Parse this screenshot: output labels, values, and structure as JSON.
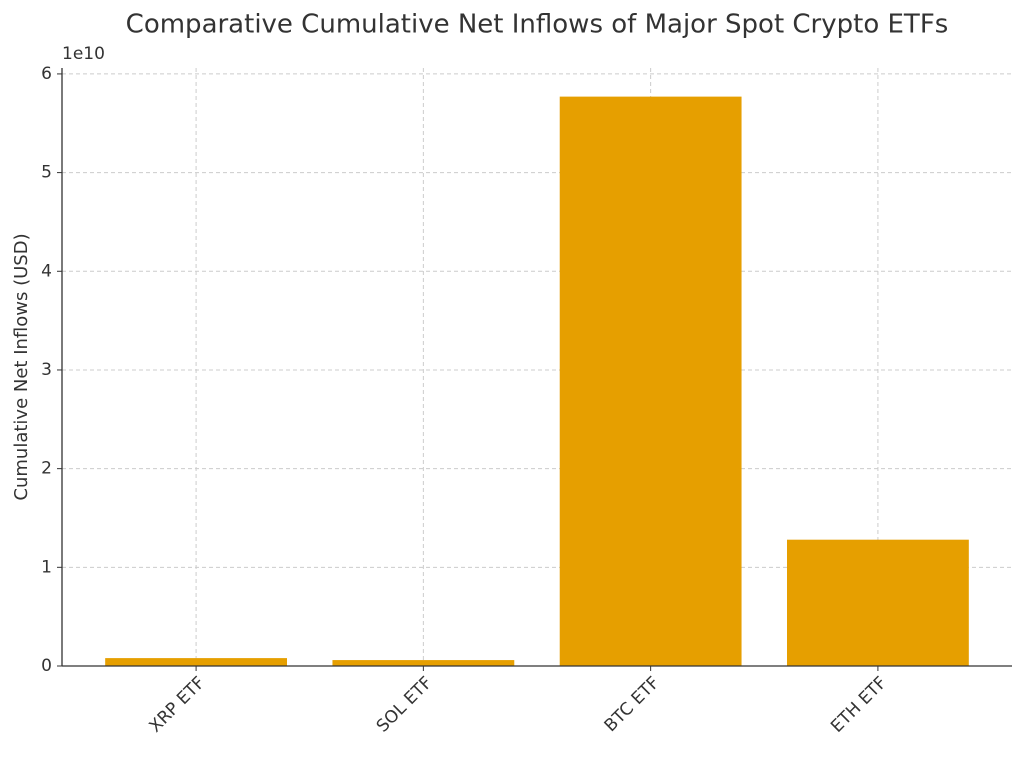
{
  "chart_data": {
    "type": "bar",
    "title": "Comparative Cumulative Net Inflows of Major Spot Crypto ETFs",
    "ylabel": "Cumulative Net Inflows (USD)",
    "y_offset_label": "1e10",
    "categories": [
      "XRP ETF",
      "SOL ETF",
      "BTC ETF",
      "ETH ETF"
    ],
    "values": [
      0.08,
      0.06,
      5.77,
      1.28
    ],
    "color": "#e69f00",
    "ylim": [
      0,
      6.06
    ],
    "yticks": [
      0,
      1,
      2,
      3,
      4,
      5,
      6
    ],
    "grid": true
  }
}
